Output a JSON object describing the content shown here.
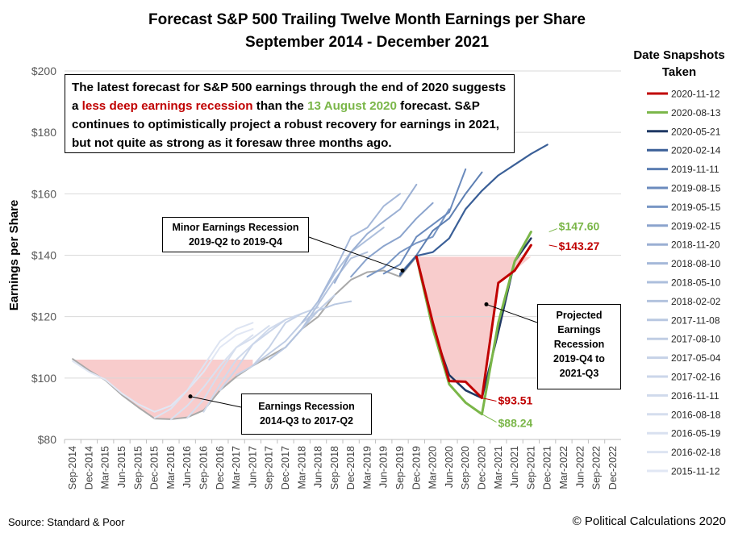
{
  "header": {
    "title_line1": "Forecast S&P 500 Trailing Twelve Month Earnings per Share",
    "title_line2": "September 2014 - December 2021"
  },
  "callouts": {
    "main_part1": "The latest forecast for S&P 500 earnings through the end of 2020 suggests a ",
    "main_red": "less deep earnings recession",
    "main_part2": " than the ",
    "main_green": "13 August 2020",
    "main_part3": " forecast. S&P continues to optimistically project a robust recovery for earnings in 2021, but not quite as strong as it foresaw three months ago.",
    "minor_line1": "Minor Earnings Recession",
    "minor_line2": "2019-Q2 to 2019-Q4",
    "recession_line1": "Earnings Recession",
    "recession_line2": "2014-Q3 to 2017-Q2",
    "projected_line1": "Projected",
    "projected_line2": "Earnings",
    "projected_line3": "Recession",
    "projected_line4": "2019-Q4 to",
    "projected_line5": "2021-Q3"
  },
  "legend": {
    "title_line1": "Date Snapshots",
    "title_line2": "Taken"
  },
  "footer": {
    "source": "Source: Standard  &  Poor",
    "copyright": "© Political Calculations 2020"
  },
  "colors": {
    "red": "#c00000",
    "green": "#7ab648",
    "navy": "#1f3864",
    "shade": "#f7c6c6"
  },
  "chart_data": {
    "type": "line",
    "ylabel": "Earnings per Share",
    "xlabel": "",
    "ylim": [
      80,
      200
    ],
    "yticks": [
      80,
      100,
      120,
      140,
      160,
      180,
      200
    ],
    "ytick_labels": [
      "$80",
      "$100",
      "$120",
      "$140",
      "$160",
      "$180",
      "$200"
    ],
    "x_labels": [
      "Sep-2014",
      "Dec-2014",
      "Mar-2015",
      "Jun-2015",
      "Sep-2015",
      "Dec-2015",
      "Mar-2016",
      "Jun-2016",
      "Sep-2016",
      "Dec-2016",
      "Mar-2017",
      "Jun-2017",
      "Sep-2017",
      "Dec-2017",
      "Mar-2018",
      "Jun-2018",
      "Sep-2018",
      "Dec-2018",
      "Mar-2019",
      "Jun-2019",
      "Sep-2019",
      "Dec-2019",
      "Mar-2020",
      "Jun-2020",
      "Sep-2020",
      "Dec-2020",
      "Mar-2021",
      "Jun-2021",
      "Sep-2021",
      "Dec-2021",
      "Mar-2022",
      "Jun-2022",
      "Sep-2022",
      "Dec-2022"
    ],
    "shaded_regions": [
      {
        "from": "Sep-2014",
        "to": "Jun-2017",
        "y": 106
      },
      {
        "from": "Dec-2019",
        "to": "Sep-2021",
        "y": 139.5
      }
    ],
    "annotations": [
      {
        "text": "$147.60",
        "x": "Dec-2021",
        "y": 147.6,
        "color": "green"
      },
      {
        "text": "$143.27",
        "x": "Dec-2021",
        "y": 143.27,
        "color": "red"
      },
      {
        "text": "$93.51",
        "x": "Dec-2020",
        "y": 93.51,
        "color": "red"
      },
      {
        "text": "$88.24",
        "x": "Dec-2020",
        "y": 88.24,
        "color": "green"
      }
    ],
    "series": [
      {
        "name": "2020-11-12",
        "color": "#c00000",
        "width": 3,
        "start": 21,
        "values": [
          139.5,
          118,
          99,
          98.8,
          93.51,
          131,
          135,
          143.27
        ]
      },
      {
        "name": "2020-08-13",
        "color": "#7ab648",
        "width": 3,
        "start": 21,
        "values": [
          139.5,
          116,
          98,
          92,
          88.24,
          118,
          138,
          147.6
        ]
      },
      {
        "name": "2020-05-21",
        "color": "#1f3864",
        "width": 2.5,
        "start": 21,
        "values": [
          139.5,
          116,
          101,
          96,
          93.5,
          115,
          138,
          145.5
        ]
      },
      {
        "name": "2020-02-14",
        "color": "#3a5f97",
        "width": 2.2,
        "start": 20,
        "values": [
          133.5,
          139.8,
          141,
          145.5,
          155,
          161,
          166,
          169.5,
          173,
          176
        ]
      },
      {
        "name": "2019-11-11",
        "color": "#5d7fb2",
        "width": 2,
        "start": 20,
        "values": [
          134,
          140,
          148,
          152,
          160,
          167
        ]
      },
      {
        "name": "2019-08-15",
        "color": "#6b8bbd",
        "width": 2,
        "start": 19,
        "values": [
          134,
          137,
          146,
          150,
          154,
          168
        ]
      },
      {
        "name": "2019-05-15",
        "color": "#7896c4",
        "width": 2,
        "start": 18,
        "values": [
          133,
          136,
          141,
          144,
          146,
          155
        ]
      },
      {
        "name": "2019-02-15",
        "color": "#8ba4cd",
        "width": 2,
        "start": 17,
        "values": [
          133,
          139,
          143,
          146,
          152,
          157
        ]
      },
      {
        "name": "2018-11-20",
        "color": "#9aafd3",
        "width": 2,
        "start": 16,
        "values": [
          131,
          141,
          147,
          151,
          155,
          163
        ]
      },
      {
        "name": "2018-08-10",
        "color": "#a5b8d9",
        "width": 2,
        "start": 15,
        "values": [
          125,
          135,
          146,
          149,
          156,
          160
        ]
      },
      {
        "name": "2018-05-10",
        "color": "#adbfdc",
        "width": 2,
        "start": 14,
        "values": [
          118,
          125,
          134,
          141,
          145,
          149
        ]
      },
      {
        "name": "2018-02-02",
        "color": "#b3c3de",
        "width": 2,
        "start": 13,
        "values": [
          110,
          116,
          124,
          132,
          139,
          141
        ]
      },
      {
        "name": "2017-11-08",
        "color": "#b9c8e1",
        "width": 2,
        "start": 12,
        "values": [
          106,
          110,
          116,
          122,
          124,
          125
        ]
      },
      {
        "name": "2017-08-10",
        "color": "#c0cde4",
        "width": 2,
        "start": 11,
        "values": [
          104,
          108,
          112,
          118,
          122,
          127
        ]
      },
      {
        "name": "2017-05-04",
        "color": "#c6d2e7",
        "width": 2,
        "start": 10,
        "values": [
          101,
          104,
          110,
          118,
          121,
          123
        ]
      },
      {
        "name": "2017-02-16",
        "color": "#cbd6ea",
        "width": 2,
        "start": 9,
        "values": [
          96,
          103,
          111,
          115,
          119,
          121
        ]
      },
      {
        "name": "2016-11-11",
        "color": "#d0daec",
        "width": 2,
        "start": 8,
        "values": [
          89,
          98,
          106,
          111,
          116,
          119
        ]
      },
      {
        "name": "2016-08-18",
        "color": "#d5deee",
        "width": 2,
        "start": 7,
        "values": [
          87,
          93,
          102,
          110,
          113,
          117
        ]
      },
      {
        "name": "2016-05-19",
        "color": "#d9e1f0",
        "width": 2,
        "start": 6,
        "values": [
          86.5,
          91,
          97,
          104,
          110,
          114
        ]
      },
      {
        "name": "2016-02-18",
        "color": "#dde4f2",
        "width": 2,
        "start": 5,
        "values": [
          87,
          90,
          96,
          104,
          112,
          116,
          118
        ]
      },
      {
        "name": "2015-11-12",
        "color": "#e1e7f4",
        "width": 2,
        "start": 0,
        "values": [
          105.5,
          102,
          99.5,
          95,
          91.5,
          89,
          91,
          96,
          102,
          110,
          114,
          116
        ]
      },
      {
        "name": "",
        "color": "#a9a9a9",
        "width": 2,
        "start": 0,
        "values": [
          106.2,
          102.5,
          99.3,
          94.5,
          90.5,
          86.8,
          86.6,
          87.2,
          89.5,
          96,
          100.5,
          104,
          107,
          110,
          116,
          120,
          127,
          132,
          134.5,
          135,
          133,
          139.5
        ]
      }
    ]
  }
}
